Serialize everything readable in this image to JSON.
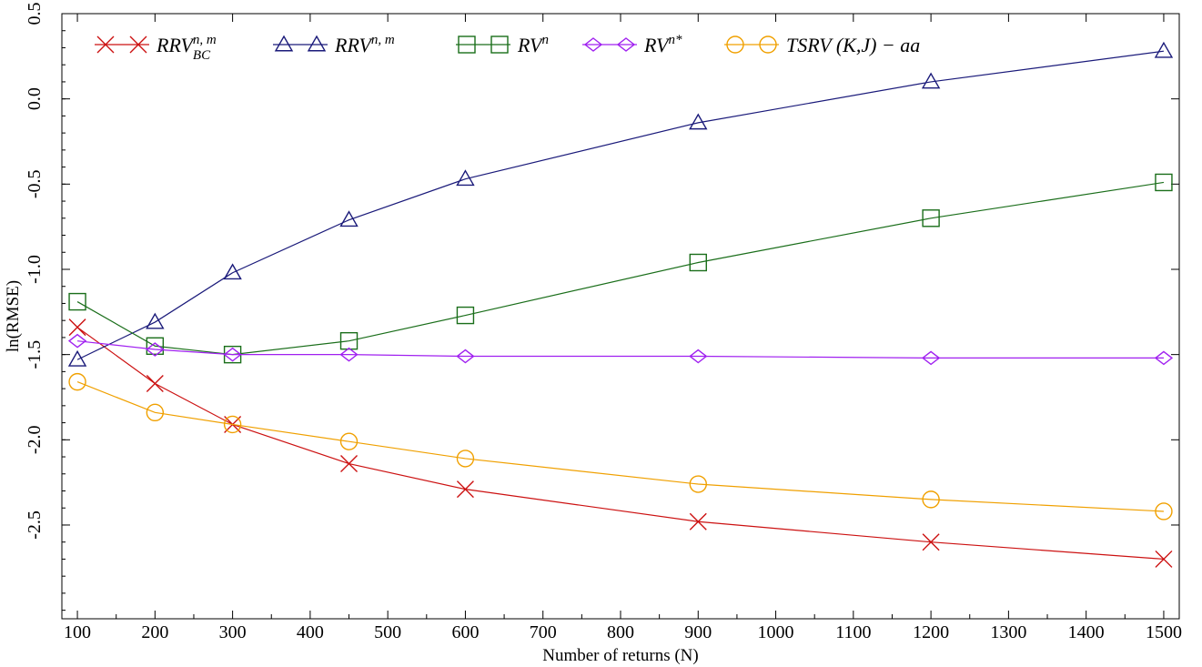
{
  "chart_data": {
    "type": "line",
    "title": "",
    "xlabel": "Number of returns (N)",
    "ylabel": "ln(RMSE)",
    "x": [
      100,
      200,
      300,
      450,
      600,
      900,
      1200,
      1500
    ],
    "xlim": [
      80,
      1520
    ],
    "ylim": [
      -3.05,
      0.5
    ],
    "xticks": [
      100,
      200,
      300,
      400,
      500,
      600,
      700,
      800,
      900,
      1000,
      1100,
      1200,
      1300,
      1400,
      1500
    ],
    "yticks": [
      -2.5,
      -2.0,
      -1.5,
      -1.0,
      -0.5,
      0.0,
      0.5
    ],
    "ytick_labels": [
      "-2.5",
      "-2.0",
      "-1.5",
      "-1.0",
      "-0.5",
      "0.0",
      "0.5"
    ],
    "legend_position": "top",
    "grid": false,
    "series": [
      {
        "legend": {
          "base": "RRV",
          "sup": "n, m",
          "sub": "BC"
        },
        "marker": "x",
        "color": "#cc1111",
        "values": [
          -1.34,
          -1.67,
          -1.91,
          -2.14,
          -2.29,
          -2.48,
          -2.6,
          -2.7
        ]
      },
      {
        "legend": {
          "base": "RRV",
          "sup": "n, m",
          "sub": ""
        },
        "marker": "triangle",
        "color": "#1a1a7a",
        "values": [
          -1.53,
          -1.31,
          -1.02,
          -0.71,
          -0.47,
          -0.14,
          0.1,
          0.28
        ]
      },
      {
        "legend": {
          "base": "RV",
          "sup": "n",
          "sub": ""
        },
        "marker": "square",
        "color": "#1a6e1a",
        "values": [
          -1.19,
          -1.45,
          -1.5,
          -1.42,
          -1.27,
          -0.96,
          -0.7,
          -0.49
        ]
      },
      {
        "legend": {
          "base": "RV",
          "sup": "n*",
          "sub": ""
        },
        "marker": "diamond",
        "color": "#a020f0",
        "values": [
          -1.42,
          -1.47,
          -1.5,
          -1.5,
          -1.51,
          -1.51,
          -1.52,
          -1.52
        ]
      },
      {
        "legend": {
          "base": "TSRV (K,J) − aa",
          "sup": "",
          "sub": ""
        },
        "marker": "circle",
        "color": "#f0a000",
        "values": [
          -1.66,
          -1.84,
          -1.91,
          -2.01,
          -2.11,
          -2.26,
          -2.35,
          -2.42
        ]
      }
    ]
  }
}
